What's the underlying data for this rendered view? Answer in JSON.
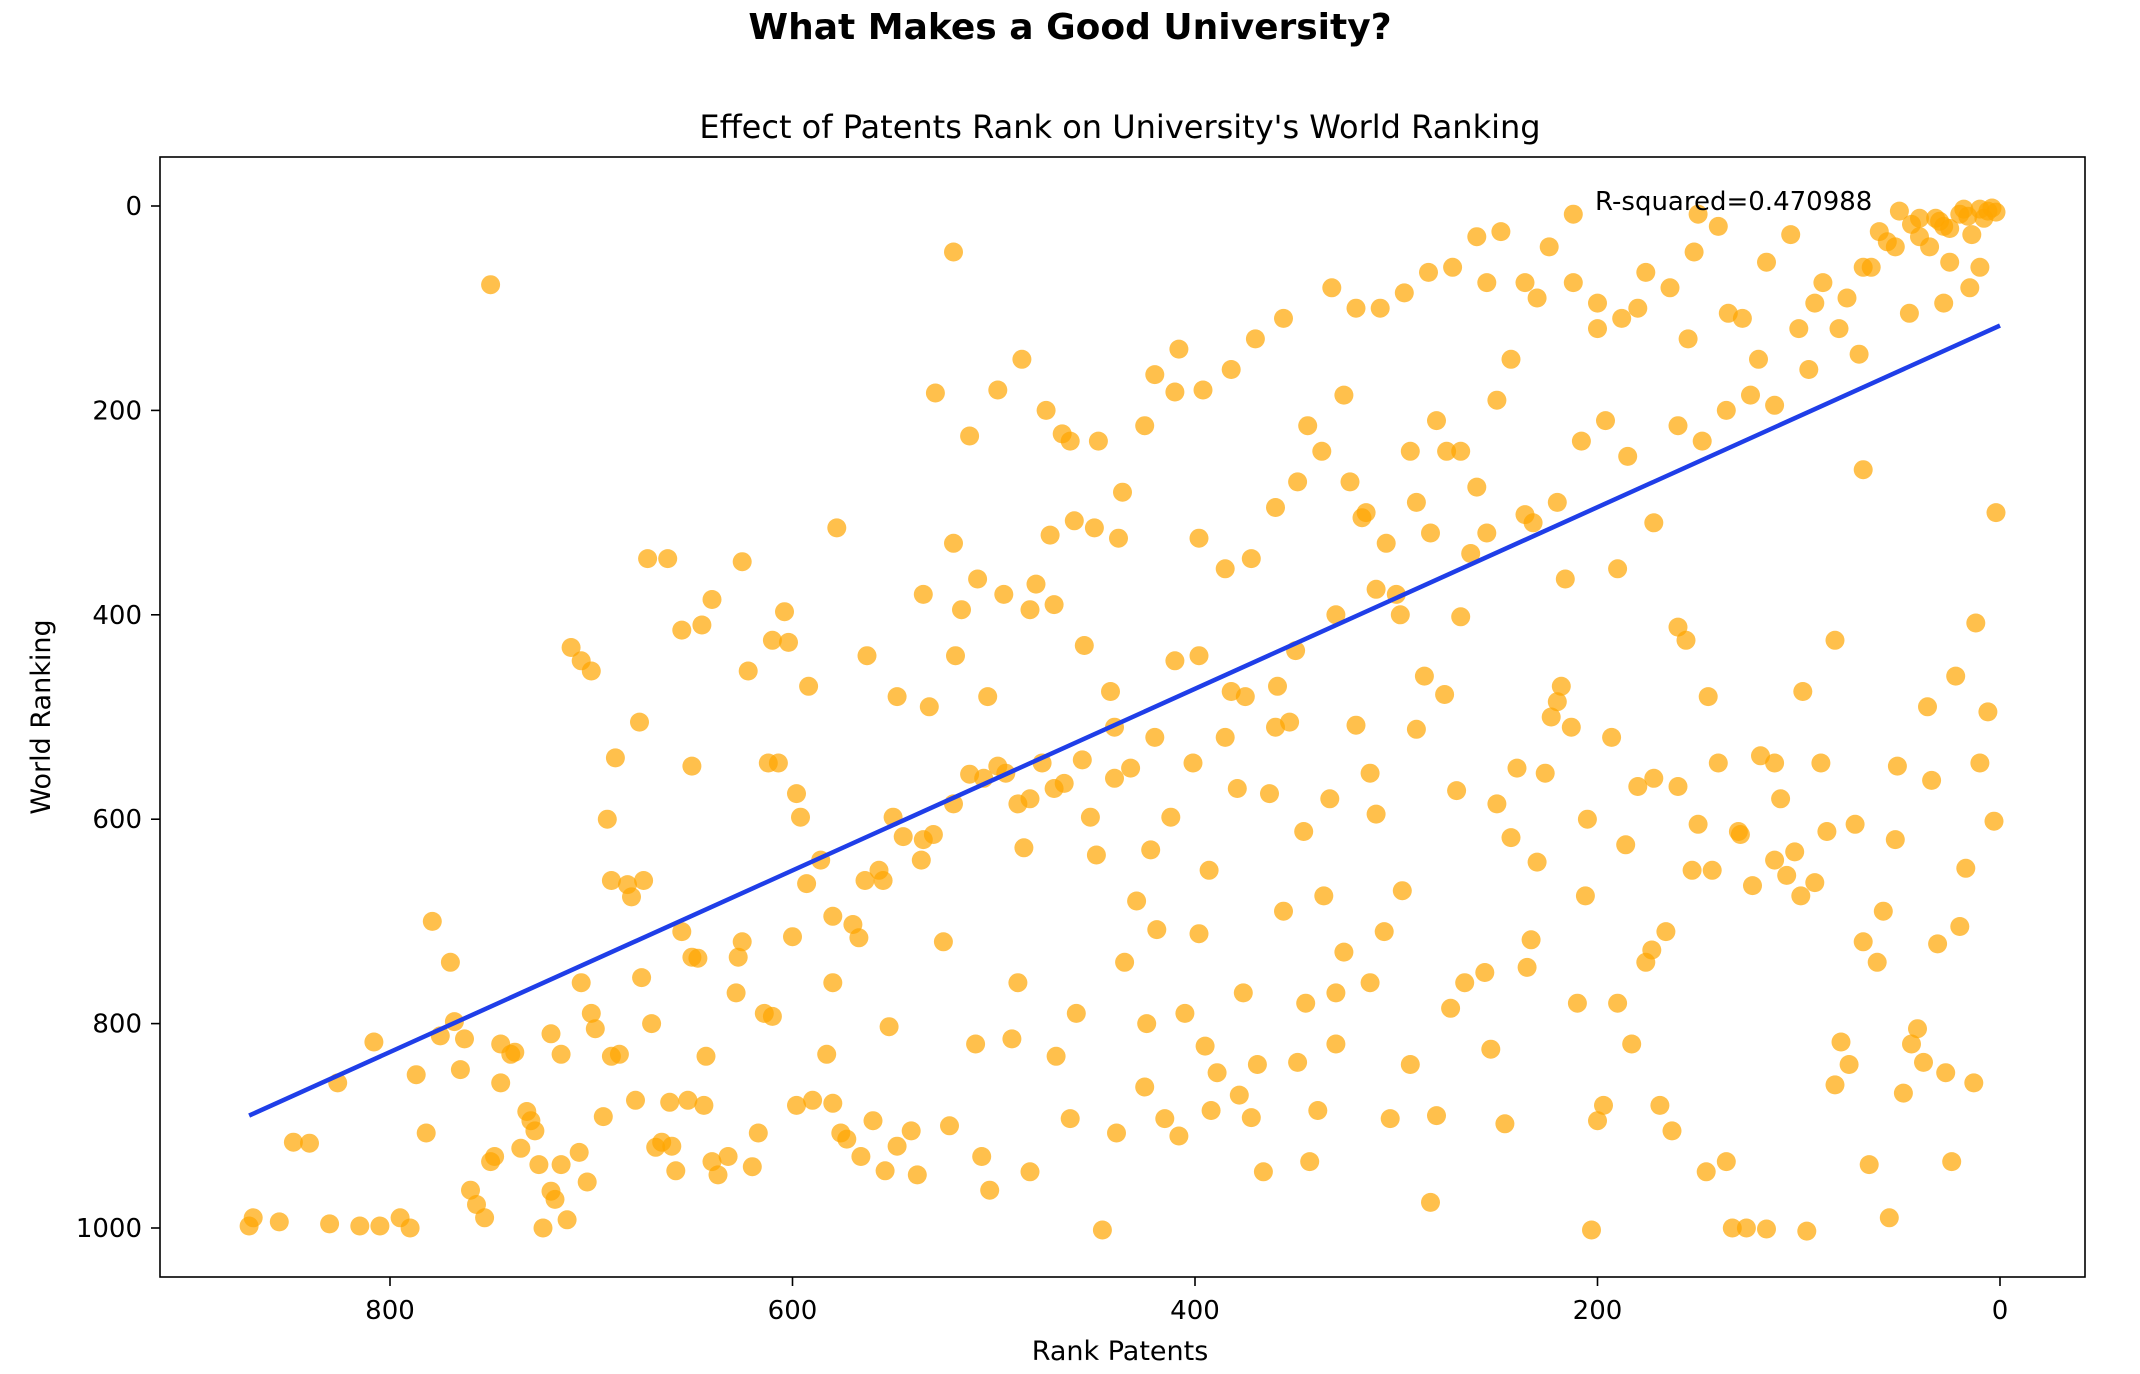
{
  "suptitle": "What Makes a Good University?",
  "chart_data": {
    "type": "scatter",
    "title": "Effect of Patents Rank on University's World Ranking",
    "xlabel": "Rank Patents",
    "ylabel": "World Ranking",
    "x_inverted": true,
    "y_inverted": true,
    "xlim": [
      0,
      920
    ],
    "ylim": [
      -48,
      1050
    ],
    "xticks": [
      800,
      600,
      400,
      200,
      0
    ],
    "yticks": [
      0,
      200,
      400,
      600,
      800,
      1000
    ],
    "point_color": "#FFA500",
    "line_color": "#1f3ee8",
    "annotation": "R-squared=0.470988",
    "regression": {
      "x": [
        870,
        0
      ],
      "y": [
        890,
        117
      ]
    },
    "points": [
      [
        870,
        998
      ],
      [
        855,
        994
      ],
      [
        848,
        916
      ],
      [
        830,
        996
      ],
      [
        815,
        998
      ],
      [
        805,
        998
      ],
      [
        795,
        990
      ],
      [
        787,
        850
      ],
      [
        782,
        907
      ],
      [
        775,
        812
      ],
      [
        770,
        740
      ],
      [
        768,
        798
      ],
      [
        760,
        963
      ],
      [
        757,
        977
      ],
      [
        753,
        990
      ],
      [
        750,
        935
      ],
      [
        745,
        858
      ],
      [
        740,
        830
      ],
      [
        738,
        828
      ],
      [
        735,
        922
      ],
      [
        732,
        886
      ],
      [
        728,
        905
      ],
      [
        726,
        938
      ],
      [
        724,
        1000
      ],
      [
        720,
        964
      ],
      [
        718,
        972
      ],
      [
        715,
        938
      ],
      [
        712,
        992
      ],
      [
        706,
        926
      ],
      [
        702,
        955
      ],
      [
        698,
        805
      ],
      [
        694,
        891
      ],
      [
        690,
        832
      ],
      [
        686,
        830
      ],
      [
        682,
        664
      ],
      [
        680,
        676
      ],
      [
        678,
        875
      ],
      [
        674,
        660
      ],
      [
        670,
        800
      ],
      [
        668,
        921
      ],
      [
        665,
        916
      ],
      [
        661,
        877
      ],
      [
        658,
        944
      ],
      [
        655,
        710
      ],
      [
        652,
        875
      ],
      [
        650,
        548
      ],
      [
        647,
        736
      ],
      [
        643,
        832
      ],
      [
        640,
        935
      ],
      [
        637,
        948
      ],
      [
        632,
        930
      ],
      [
        627,
        735
      ],
      [
        622,
        455
      ],
      [
        620,
        940
      ],
      [
        617,
        907
      ],
      [
        614,
        790
      ],
      [
        610,
        793
      ],
      [
        607,
        545
      ],
      [
        604,
        397
      ],
      [
        602,
        427
      ],
      [
        598,
        575
      ],
      [
        596,
        598
      ],
      [
        593,
        663
      ],
      [
        590,
        875
      ],
      [
        586,
        640
      ],
      [
        583,
        830
      ],
      [
        580,
        878
      ],
      [
        576,
        907
      ],
      [
        573,
        913
      ],
      [
        570,
        703
      ],
      [
        567,
        716
      ],
      [
        564,
        660
      ],
      [
        560,
        895
      ],
      [
        557,
        650
      ],
      [
        554,
        944
      ],
      [
        552,
        803
      ],
      [
        548,
        920
      ],
      [
        545,
        617
      ],
      [
        541,
        905
      ],
      [
        538,
        948
      ],
      [
        535,
        620
      ],
      [
        532,
        490
      ],
      [
        529,
        183
      ],
      [
        525,
        720
      ],
      [
        522,
        900
      ],
      [
        519,
        440
      ],
      [
        516,
        395
      ],
      [
        512,
        556
      ],
      [
        509,
        820
      ],
      [
        506,
        930
      ],
      [
        502,
        963
      ],
      [
        498,
        548
      ],
      [
        494,
        555
      ],
      [
        491,
        815
      ],
      [
        488,
        585
      ],
      [
        485,
        628
      ],
      [
        482,
        945
      ],
      [
        479,
        370
      ],
      [
        476,
        545
      ],
      [
        472,
        322
      ],
      [
        469,
        832
      ],
      [
        466,
        223
      ],
      [
        462,
        893
      ],
      [
        459,
        790
      ],
      [
        456,
        542
      ],
      [
        452,
        598
      ],
      [
        449,
        635
      ],
      [
        446,
        1002
      ],
      [
        442,
        475
      ],
      [
        439,
        907
      ],
      [
        435,
        740
      ],
      [
        432,
        550
      ],
      [
        429,
        680
      ],
      [
        425,
        862
      ],
      [
        422,
        630
      ],
      [
        419,
        708
      ],
      [
        415,
        893
      ],
      [
        412,
        598
      ],
      [
        408,
        910
      ],
      [
        405,
        790
      ],
      [
        401,
        545
      ],
      [
        398,
        712
      ],
      [
        395,
        822
      ],
      [
        392,
        885
      ],
      [
        389,
        848
      ],
      [
        385,
        520
      ],
      [
        382,
        475
      ],
      [
        379,
        570
      ],
      [
        376,
        770
      ],
      [
        372,
        892
      ],
      [
        369,
        840
      ],
      [
        366,
        945
      ],
      [
        363,
        575
      ],
      [
        359,
        470
      ],
      [
        356,
        690
      ],
      [
        353,
        505
      ],
      [
        349,
        838
      ],
      [
        346,
        612
      ],
      [
        343,
        935
      ],
      [
        339,
        885
      ],
      [
        336,
        675
      ],
      [
        333,
        580
      ],
      [
        330,
        820
      ],
      [
        326,
        730
      ],
      [
        323,
        270
      ],
      [
        320,
        508
      ],
      [
        317,
        305
      ],
      [
        313,
        760
      ],
      [
        310,
        595
      ],
      [
        306,
        710
      ],
      [
        303,
        893
      ],
      [
        300,
        380
      ],
      [
        297,
        670
      ],
      [
        293,
        840
      ],
      [
        290,
        512
      ],
      [
        286,
        460
      ],
      [
        283,
        975
      ],
      [
        280,
        890
      ],
      [
        276,
        478
      ],
      [
        273,
        785
      ],
      [
        270,
        572
      ],
      [
        266,
        760
      ],
      [
        263,
        340
      ],
      [
        260,
        275
      ],
      [
        256,
        750
      ],
      [
        253,
        825
      ],
      [
        250,
        585
      ],
      [
        246,
        898
      ],
      [
        243,
        618
      ],
      [
        240,
        550
      ],
      [
        236,
        302
      ],
      [
        233,
        718
      ],
      [
        230,
        642
      ],
      [
        226,
        555
      ],
      [
        223,
        500
      ],
      [
        220,
        485
      ],
      [
        216,
        365
      ],
      [
        213,
        510
      ],
      [
        210,
        780
      ],
      [
        206,
        675
      ],
      [
        203,
        1002
      ],
      [
        200,
        895
      ],
      [
        197,
        880
      ],
      [
        193,
        520
      ],
      [
        190,
        780
      ],
      [
        186,
        625
      ],
      [
        183,
        820
      ],
      [
        180,
        568
      ],
      [
        176,
        740
      ],
      [
        173,
        728
      ],
      [
        169,
        880
      ],
      [
        166,
        710
      ],
      [
        163,
        905
      ],
      [
        160,
        568
      ],
      [
        156,
        425
      ],
      [
        153,
        650
      ],
      [
        150,
        605
      ],
      [
        146,
        945
      ],
      [
        143,
        650
      ],
      [
        140,
        545
      ],
      [
        136,
        935
      ],
      [
        133,
        1000
      ],
      [
        129,
        615
      ],
      [
        126,
        1000
      ],
      [
        123,
        665
      ],
      [
        119,
        538
      ],
      [
        116,
        1001
      ],
      [
        112,
        545
      ],
      [
        109,
        580
      ],
      [
        106,
        655
      ],
      [
        102,
        632
      ],
      [
        99,
        675
      ],
      [
        96,
        1003
      ],
      [
        92,
        662
      ],
      [
        89,
        545
      ],
      [
        86,
        612
      ],
      [
        82,
        860
      ],
      [
        79,
        818
      ],
      [
        75,
        840
      ],
      [
        72,
        605
      ],
      [
        68,
        720
      ],
      [
        65,
        938
      ],
      [
        61,
        740
      ],
      [
        58,
        690
      ],
      [
        55,
        990
      ],
      [
        51,
        548
      ],
      [
        48,
        868
      ],
      [
        44,
        820
      ],
      [
        41,
        805
      ],
      [
        38,
        838
      ],
      [
        34,
        562
      ],
      [
        31,
        722
      ],
      [
        27,
        848
      ],
      [
        24,
        935
      ],
      [
        20,
        705
      ],
      [
        17,
        648
      ],
      [
        13,
        858
      ],
      [
        10,
        545
      ],
      [
        6,
        495
      ],
      [
        3,
        602
      ],
      [
        2,
        300
      ],
      [
        868,
        990
      ],
      [
        840,
        917
      ],
      [
        826,
        858
      ],
      [
        808,
        818
      ],
      [
        790,
        1000
      ],
      [
        779,
        700
      ],
      [
        763,
        815
      ],
      [
        748,
        930
      ],
      [
        730,
        895
      ],
      [
        715,
        830
      ],
      [
        705,
        760
      ],
      [
        690,
        660
      ],
      [
        676,
        505
      ],
      [
        660,
        920
      ],
      [
        644,
        880
      ],
      [
        628,
        770
      ],
      [
        612,
        545
      ],
      [
        598,
        880
      ],
      [
        580,
        760
      ],
      [
        566,
        930
      ],
      [
        550,
        598
      ],
      [
        536,
        640
      ],
      [
        520,
        585
      ],
      [
        503,
        480
      ],
      [
        488,
        760
      ],
      [
        470,
        570
      ],
      [
        455,
        430
      ],
      [
        440,
        510
      ],
      [
        424,
        800
      ],
      [
        410,
        445
      ],
      [
        393,
        650
      ],
      [
        378,
        870
      ],
      [
        360,
        510
      ],
      [
        345,
        780
      ],
      [
        330,
        770
      ],
      [
        313,
        555
      ],
      [
        298,
        400
      ],
      [
        283,
        320
      ],
      [
        268,
        402
      ],
      [
        250,
        190
      ],
      [
        235,
        745
      ],
      [
        218,
        470
      ],
      [
        205,
        600
      ],
      [
        190,
        355
      ],
      [
        172,
        560
      ],
      [
        160,
        412
      ],
      [
        145,
        480
      ],
      [
        130,
        612
      ],
      [
        112,
        640
      ],
      [
        98,
        475
      ],
      [
        82,
        425
      ],
      [
        68,
        258
      ],
      [
        52,
        620
      ],
      [
        36,
        490
      ],
      [
        22,
        460
      ],
      [
        12,
        408
      ],
      [
        750,
        77
      ],
      [
        710,
        432
      ],
      [
        705,
        445
      ],
      [
        700,
        455
      ],
      [
        692,
        600
      ],
      [
        688,
        540
      ],
      [
        672,
        345
      ],
      [
        662,
        345
      ],
      [
        655,
        415
      ],
      [
        645,
        410
      ],
      [
        640,
        385
      ],
      [
        625,
        348
      ],
      [
        610,
        425
      ],
      [
        592,
        470
      ],
      [
        578,
        315
      ],
      [
        563,
        440
      ],
      [
        548,
        480
      ],
      [
        535,
        380
      ],
      [
        520,
        330
      ],
      [
        508,
        365
      ],
      [
        495,
        380
      ],
      [
        482,
        395
      ],
      [
        470,
        390
      ],
      [
        460,
        308
      ],
      [
        450,
        315
      ],
      [
        438,
        325
      ],
      [
        425,
        215
      ],
      [
        410,
        182
      ],
      [
        398,
        325
      ],
      [
        385,
        355
      ],
      [
        372,
        345
      ],
      [
        360,
        295
      ],
      [
        349,
        270
      ],
      [
        337,
        240
      ],
      [
        326,
        185
      ],
      [
        315,
        300
      ],
      [
        305,
        330
      ],
      [
        293,
        240
      ],
      [
        280,
        210
      ],
      [
        268,
        240
      ],
      [
        255,
        320
      ],
      [
        243,
        150
      ],
      [
        232,
        310
      ],
      [
        220,
        290
      ],
      [
        208,
        230
      ],
      [
        196,
        210
      ],
      [
        185,
        245
      ],
      [
        172,
        310
      ],
      [
        160,
        215
      ],
      [
        148,
        230
      ],
      [
        136,
        200
      ],
      [
        124,
        185
      ],
      [
        112,
        195
      ],
      [
        100,
        120
      ],
      [
        88,
        75
      ],
      [
        76,
        90
      ],
      [
        64,
        60
      ],
      [
        52,
        40
      ],
      [
        40,
        30
      ],
      [
        28,
        20
      ],
      [
        16,
        10
      ],
      [
        6,
        5
      ],
      [
        520,
        45
      ],
      [
        512,
        225
      ],
      [
        498,
        180
      ],
      [
        486,
        150
      ],
      [
        474,
        200
      ],
      [
        462,
        230
      ],
      [
        448,
        230
      ],
      [
        436,
        280
      ],
      [
        420,
        165
      ],
      [
        408,
        140
      ],
      [
        396,
        180
      ],
      [
        382,
        160
      ],
      [
        370,
        130
      ],
      [
        356,
        110
      ],
      [
        344,
        215
      ],
      [
        332,
        80
      ],
      [
        320,
        100
      ],
      [
        308,
        100
      ],
      [
        296,
        85
      ],
      [
        284,
        65
      ],
      [
        272,
        60
      ],
      [
        260,
        30
      ],
      [
        248,
        25
      ],
      [
        236,
        75
      ],
      [
        224,
        40
      ],
      [
        212,
        75
      ],
      [
        200,
        95
      ],
      [
        188,
        110
      ],
      [
        176,
        65
      ],
      [
        164,
        80
      ],
      [
        152,
        45
      ],
      [
        140,
        20
      ],
      [
        128,
        110
      ],
      [
        116,
        55
      ],
      [
        104,
        28
      ],
      [
        92,
        95
      ],
      [
        80,
        120
      ],
      [
        68,
        60
      ],
      [
        56,
        35
      ],
      [
        44,
        18
      ],
      [
        32,
        12
      ],
      [
        20,
        8
      ],
      [
        10,
        3
      ],
      [
        212,
        8
      ],
      [
        150,
        8
      ],
      [
        50,
        5
      ],
      [
        40,
        12
      ],
      [
        30,
        15
      ],
      [
        25,
        22
      ],
      [
        18,
        3
      ],
      [
        14,
        28
      ],
      [
        8,
        12
      ],
      [
        4,
        2
      ],
      [
        2,
        6
      ],
      [
        60,
        25
      ],
      [
        35,
        40
      ],
      [
        25,
        55
      ],
      [
        15,
        80
      ],
      [
        10,
        60
      ],
      [
        28,
        95
      ],
      [
        45,
        105
      ],
      [
        70,
        145
      ],
      [
        95,
        160
      ],
      [
        120,
        150
      ],
      [
        135,
        105
      ],
      [
        155,
        130
      ],
      [
        180,
        100
      ],
      [
        200,
        120
      ],
      [
        230,
        90
      ],
      [
        255,
        75
      ],
      [
        275,
        240
      ],
      [
        290,
        290
      ],
      [
        310,
        375
      ],
      [
        330,
        400
      ],
      [
        350,
        435
      ],
      [
        375,
        480
      ],
      [
        398,
        440
      ],
      [
        420,
        520
      ],
      [
        440,
        560
      ],
      [
        465,
        565
      ],
      [
        482,
        580
      ],
      [
        505,
        560
      ],
      [
        530,
        615
      ],
      [
        555,
        660
      ],
      [
        580,
        695
      ],
      [
        600,
        715
      ],
      [
        625,
        720
      ],
      [
        650,
        735
      ],
      [
        675,
        755
      ],
      [
        700,
        790
      ],
      [
        720,
        810
      ],
      [
        745,
        820
      ],
      [
        765,
        845
      ]
    ]
  }
}
